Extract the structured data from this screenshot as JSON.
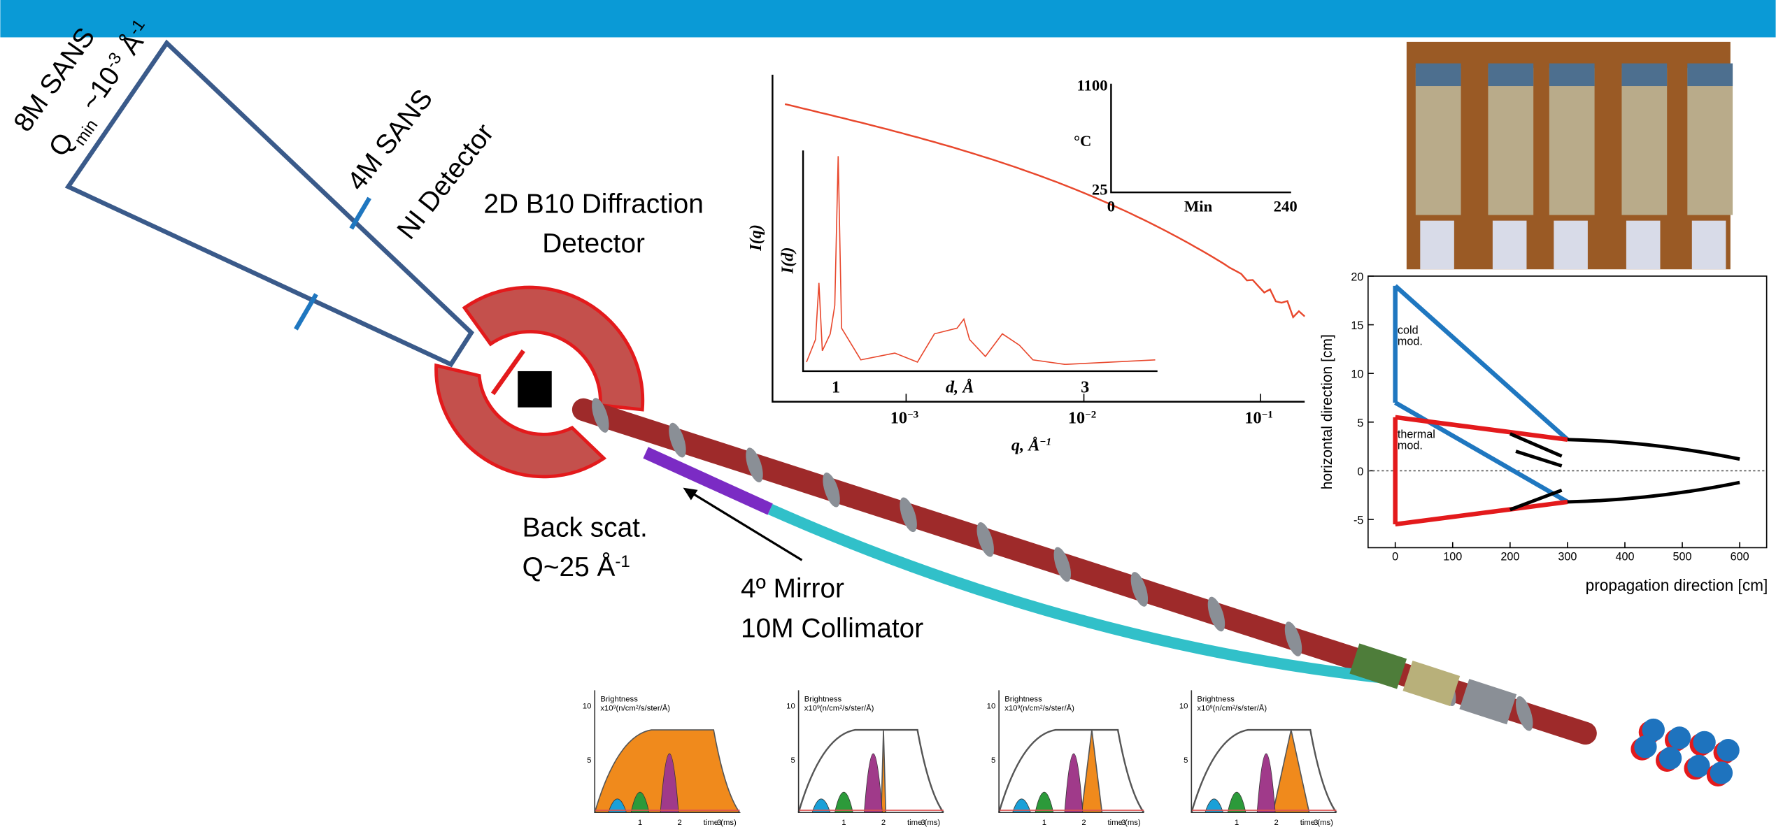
{
  "labels": {
    "sans8": "8M SANS",
    "qmin": {
      "q": "Q",
      "sub": "min",
      "approx": " ~10",
      "exp": "-3",
      "unit": " Å",
      "unit_exp": "-1"
    },
    "sans4": "4M SANS",
    "ni_detector": "NI Detector",
    "diffraction": [
      "2D B10 Diffraction",
      "Detector"
    ],
    "backscat": {
      "line1": "Back scat.",
      "q": "Q~25 Å",
      "exp": "-1"
    },
    "mirror": [
      "4º Mirror",
      "10M Collimator"
    ]
  },
  "saxs_plot": {
    "y_label": "I(q)",
    "x_label": {
      "text": "q, Å",
      "exp": "−1"
    },
    "x_ticks": [
      {
        "base": "10",
        "exp": "−3"
      },
      {
        "base": "10",
        "exp": "−2"
      },
      {
        "base": "10",
        "exp": "−1"
      }
    ],
    "inset": {
      "y_label": "I(d)",
      "x_label": "d, Å",
      "x_ticks": [
        "1",
        "3"
      ]
    },
    "temperature": {
      "y_label": "°C",
      "y_ticks": [
        "1100",
        "25"
      ],
      "x_label": "Min",
      "x_ticks": [
        "0",
        "240"
      ]
    }
  },
  "beam_plot": {
    "y_label": "horizontal direction [cm]",
    "x_label": "propagation direction [cm]",
    "y_ticks": [
      "20",
      "15",
      "10",
      "5",
      "0",
      "-5"
    ],
    "x_ticks": [
      "0",
      "100",
      "200",
      "300",
      "400",
      "500",
      "600"
    ],
    "cold": [
      "cold",
      "mod."
    ],
    "thermal": [
      "thermal",
      "mod."
    ]
  },
  "brightness": {
    "title": "Brightness",
    "units": {
      "pre": "x10",
      "exp": "9",
      "mid": "(n/cm",
      "exp2": "2",
      "post": "/s/ster/Å)"
    },
    "y_ticks": [
      "10",
      "5"
    ],
    "x_ticks": [
      "1",
      "2",
      "3"
    ],
    "x_label": "time (ms)"
  }
}
